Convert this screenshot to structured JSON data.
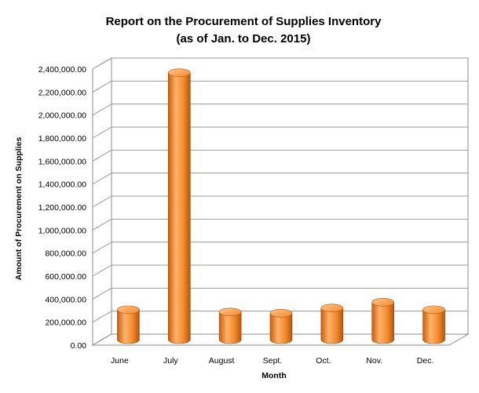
{
  "chart_data": {
    "type": "bar",
    "title": "Report on the Procurement of Supplies Inventory",
    "subtitle": "(as of Jan. to Dec. 2015)",
    "xlabel": "Month",
    "ylabel": "Amount of Procurement on Supplies",
    "categories": [
      "June",
      "July",
      "August",
      "Sept.",
      "Oct.",
      "Nov.",
      "Dec."
    ],
    "values": [
      260000,
      2320000,
      240000,
      230000,
      275000,
      325000,
      260000
    ],
    "ylim": [
      0,
      2400000
    ],
    "yticks": [
      0,
      200000,
      400000,
      600000,
      800000,
      1000000,
      1200000,
      1400000,
      1600000,
      1800000,
      2000000,
      2200000,
      2400000
    ],
    "ytick_labels": [
      "0.00",
      "200,000.00",
      "400,000.00",
      "600,000.00",
      "800,000.00",
      "1,000,000.00",
      "1,200,000.00",
      "1,400,000.00",
      "1,600,000.00",
      "1,800,000.00",
      "2,000,000.00",
      "2,200,000.00",
      "2,400,000.00"
    ],
    "grid": true,
    "bar_shape": "cylinder-3d",
    "bar_color": "#f7913a",
    "legend": "none"
  }
}
